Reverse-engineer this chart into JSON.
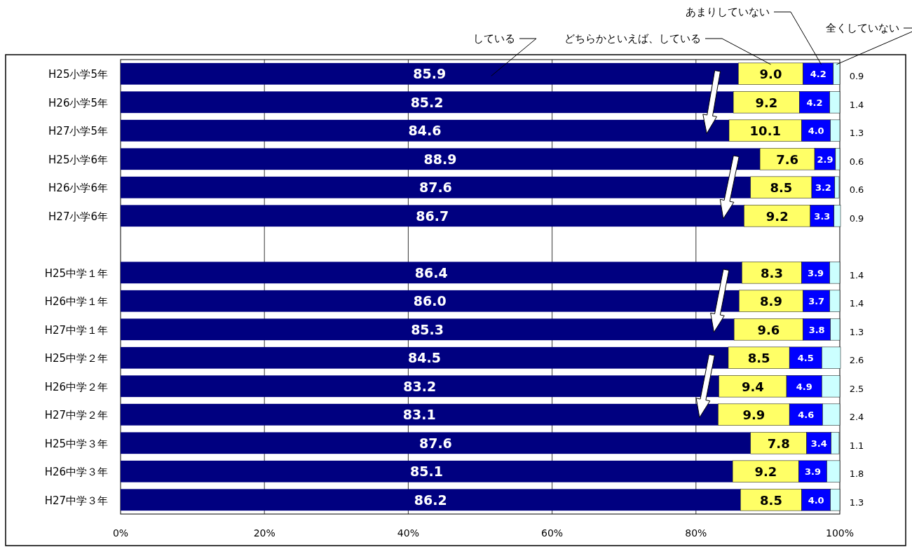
{
  "chart_data": {
    "type": "bar",
    "orientation": "horizontal",
    "stacked": true,
    "legend": "top right",
    "grid": "x",
    "categories": [
      "H25小学5年",
      "H26小学5年",
      "H27小学5年",
      "H25小学6年",
      "H26小学6年",
      "H27小学6年",
      null,
      "H25中学１年",
      "H26中学１年",
      "H27中学１年",
      "H25中学２年",
      "H26中学２年",
      "H27中学２年",
      "H25中学３年",
      "H26中学３年",
      "H27中学３年"
    ],
    "xlim": [
      0,
      100
    ],
    "xticks": [
      {
        "value": 0,
        "label": "0%"
      },
      {
        "value": 20,
        "label": "20%"
      },
      {
        "value": 40,
        "label": "40%"
      },
      {
        "value": 60,
        "label": "60%"
      },
      {
        "value": 80,
        "label": "80%"
      },
      {
        "value": 100,
        "label": "100%"
      }
    ],
    "series": [
      {
        "name": "している",
        "color": "#000080",
        "values": [
          85.9,
          85.2,
          84.6,
          88.9,
          87.6,
          86.7,
          null,
          86.4,
          86.0,
          85.3,
          84.5,
          83.2,
          83.1,
          87.6,
          85.1,
          86.2
        ],
        "value_labels": [
          "85.9",
          "85.2",
          "84.6",
          "88.9",
          "87.6",
          "86.7",
          null,
          "86.4",
          "86.0",
          "85.3",
          "84.5",
          "83.2",
          "83.1",
          "87.6",
          "85.1",
          "86.2"
        ]
      },
      {
        "name": "どちらかといえば、している",
        "color": "#ffff66",
        "values": [
          9.0,
          9.2,
          10.1,
          7.6,
          8.5,
          9.2,
          null,
          8.3,
          8.9,
          9.6,
          8.5,
          9.4,
          9.9,
          7.8,
          9.2,
          8.5
        ],
        "value_labels": [
          "9.0",
          "9.2",
          "10.1",
          "7.6",
          "8.5",
          "9.2",
          null,
          "8.3",
          "8.9",
          "9.6",
          "8.5",
          "9.4",
          "9.9",
          "7.8",
          "9.2",
          "8.5"
        ]
      },
      {
        "name": "あまりしていない",
        "color": "#0000ff",
        "values": [
          4.2,
          4.2,
          4.0,
          2.9,
          3.2,
          3.3,
          null,
          3.9,
          3.7,
          3.8,
          4.5,
          4.9,
          4.6,
          3.4,
          3.9,
          4.0
        ],
        "value_labels": [
          "4.2",
          "4.2",
          "4.0",
          "2.9",
          "3.2",
          "3.3",
          null,
          "3.9",
          "3.7",
          "3.8",
          "4.5",
          "4.9",
          "4.6",
          "3.4",
          "3.9",
          "4.0"
        ]
      },
      {
        "name": "全くしていない",
        "color": "#ccffff",
        "values": [
          0.9,
          1.4,
          1.3,
          0.6,
          0.6,
          0.9,
          null,
          1.4,
          1.4,
          1.3,
          2.6,
          2.5,
          2.4,
          1.1,
          1.8,
          1.3
        ],
        "value_labels": [
          "0.9",
          "1.4",
          "1.3",
          "0.6",
          "0.6",
          "0.9",
          null,
          "1.4",
          "1.4",
          "1.3",
          "2.6",
          "2.5",
          "2.4",
          "1.1",
          "1.8",
          "1.3"
        ]
      }
    ]
  }
}
